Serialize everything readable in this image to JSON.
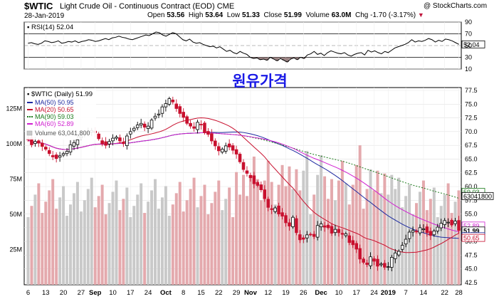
{
  "header": {
    "symbol": "$WTIC",
    "description": "Light Crude Oil - Continuous Contract (EOD)",
    "exchange": "CME",
    "date": "28-Jan-2019",
    "watermark": "@ StockCharts.com",
    "open_label": "Open",
    "open": "53.56",
    "high_label": "High",
    "high": "53.64",
    "low_label": "Low",
    "low": "51.33",
    "close_label": "Close",
    "close": "51.99",
    "volume_label": "Volume",
    "volume": "63.0M",
    "chg_label": "Chg",
    "chg": "-1.70 (-3.17%)"
  },
  "annotation": "원유가격",
  "colors": {
    "up": "#000000",
    "down": "#c8102e",
    "ma50": "#1e2aa0",
    "ma20": "#c8102e",
    "ma90": "#1a7a1a",
    "ma60": "#d020d0",
    "volume": "#e4a9ad",
    "rsi_fill": "#8b6f6f"
  },
  "chart_data": [
    {
      "type": "line",
      "title": "RSI(14)",
      "legend": "RSI(14) 52.04",
      "value_label": "52.04",
      "ylim": [
        10,
        90
      ],
      "ticks": [
        "90",
        "70",
        "50",
        "30",
        "10"
      ],
      "tick_values": [
        90,
        70,
        50,
        30,
        10
      ],
      "levels": [
        70,
        30
      ],
      "values": [
        54,
        55,
        53,
        52,
        54,
        58,
        57,
        55,
        56,
        58,
        54,
        55,
        57,
        56,
        58,
        55,
        57,
        58,
        60,
        59,
        57,
        58,
        60,
        62,
        60,
        63,
        64,
        66,
        64,
        63,
        61,
        60,
        62,
        64,
        66,
        68,
        67,
        70,
        73,
        72,
        68,
        66,
        69,
        72,
        70,
        65,
        60,
        58,
        61,
        56,
        54,
        55,
        52,
        50,
        48,
        49,
        46,
        48,
        44,
        40,
        42,
        38,
        36,
        40,
        37,
        35,
        30,
        28,
        29,
        26,
        27,
        25,
        30,
        27,
        24,
        28,
        25,
        22,
        27,
        29,
        26,
        30,
        28,
        34,
        36,
        40,
        35,
        37,
        33,
        38,
        41,
        39,
        37,
        36,
        38,
        34,
        32,
        35,
        37,
        38,
        34,
        42,
        39,
        41,
        38,
        36,
        40,
        38,
        42,
        46,
        48,
        50,
        52,
        55,
        60,
        56,
        58,
        57,
        59,
        62,
        60,
        56,
        59,
        57,
        61,
        60,
        58,
        55,
        52
      ]
    },
    {
      "type": "candlestick",
      "title": "$WTIC (Daily) 51.99",
      "ylim": [
        42.5,
        77.5
      ],
      "ticks": [
        "77.5",
        "75.0",
        "72.5",
        "70.0",
        "67.5",
        "65.0",
        "62.5",
        "60.0",
        "57.5",
        "55.0",
        "52.5",
        "50.0",
        "47.5",
        "45.0",
        "42.5"
      ],
      "tick_values": [
        77.5,
        75,
        72.5,
        70,
        67.5,
        65,
        62.5,
        60,
        57.5,
        55,
        52.5,
        50,
        47.5,
        45,
        42.5
      ],
      "x_labels": [
        "6",
        "13",
        "20",
        "27",
        "Sep",
        "10",
        "17",
        "24",
        "Oct",
        "8",
        "15",
        "22",
        "29",
        "Nov",
        "12",
        "19",
        "26",
        "Dec",
        "10",
        "17",
        "24",
        "2019",
        "7",
        "14",
        "22",
        "28"
      ],
      "x_label_days": [
        0,
        5,
        10,
        15,
        19,
        24,
        29,
        34,
        39,
        44,
        49,
        54,
        59,
        63,
        68,
        73,
        78,
        83,
        88,
        93,
        98,
        102,
        107,
        112,
        118,
        122
      ],
      "close_values": [
        68.5,
        67.6,
        68.2,
        67.9,
        67.3,
        66.8,
        66.0,
        65.4,
        65.1,
        65.6,
        66.0,
        66.4,
        67.6,
        68.0,
        68.5,
        69.2,
        69.6,
        69.9,
        70.2,
        69.8,
        68.7,
        67.8,
        67.5,
        68.2,
        68.8,
        69.0,
        68.3,
        67.8,
        69.2,
        70.0,
        70.6,
        71.2,
        71.5,
        70.8,
        71.0,
        72.1,
        72.8,
        73.2,
        74.5,
        75.1,
        76.0,
        75.4,
        74.2,
        73.3,
        72.6,
        71.5,
        71.0,
        70.6,
        71.7,
        71.2,
        69.8,
        69.5,
        68.3,
        67.4,
        66.5,
        66.8,
        67.4,
        67.2,
        66.6,
        65.9,
        64.5,
        63.1,
        62.4,
        61.6,
        60.5,
        60.2,
        59.4,
        57.8,
        56.2,
        55.8,
        56.1,
        55.0,
        54.6,
        53.4,
        52.8,
        54.4,
        51.6,
        50.3,
        50.4,
        51.2,
        51.3,
        50.9,
        52.9,
        53.2,
        52.6,
        52.5,
        51.5,
        52.2,
        51.6,
        51.3,
        51.4,
        49.8,
        49.4,
        48.6,
        46.8,
        46.2,
        45.8,
        47.2,
        46.4,
        45.5,
        45.9,
        45.3,
        45.4,
        47.1,
        47.9,
        48.2,
        49.3,
        50.4,
        51.7,
        52.0,
        51.8,
        52.5,
        52.3,
        51.6,
        51.1,
        51.9,
        52.6,
        53.3,
        53.8,
        53.5,
        53.0,
        53.7,
        52.0
      ],
      "legend": [
        {
          "label": "MA(50) 50.95",
          "color": "#1e2aa0"
        },
        {
          "label": "MA(20) 50.65",
          "color": "#c8102e"
        },
        {
          "label": "MA(90) 59.03",
          "color": "#1a7a1a"
        },
        {
          "label": "MA(60) 52.89",
          "color": "#d020d0"
        }
      ],
      "value_tags": [
        {
          "label": "59.03",
          "value": 59.03,
          "color": "#1a7a1a"
        },
        {
          "label": "52.89",
          "value": 52.89,
          "color": "#d020d0"
        },
        {
          "label": "51.99",
          "value": 51.99,
          "color": "#000000"
        },
        {
          "label": "50.95",
          "value": 50.95,
          "color": "#1e2aa0"
        },
        {
          "label": "50.65",
          "value": 50.65,
          "color": "#c8102e"
        }
      ]
    },
    {
      "type": "bar",
      "title": "Volume 63,041,800",
      "ylim": [
        0,
        140
      ],
      "ticks": [
        "125M",
        "100M",
        "75M",
        "50M",
        "25M"
      ],
      "tick_values": [
        125,
        100,
        75,
        50,
        25
      ],
      "value_label": "63041800"
    }
  ]
}
